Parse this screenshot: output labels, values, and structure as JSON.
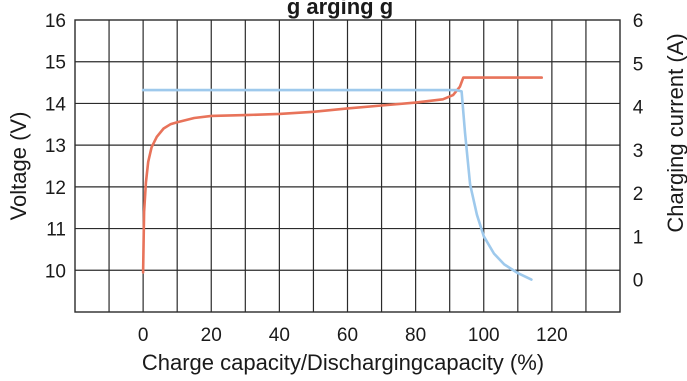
{
  "chart_data": {
    "type": "line",
    "title": "g    arging  g",
    "xlabel": "Charge capacity/Dischargingcapacity (%)",
    "ylabel": "Voltage (V)",
    "y2label": "Charging current (A)",
    "xlim": [
      -20,
      140
    ],
    "ylim": [
      9,
      16
    ],
    "y2lim": [
      -0.75,
      6
    ],
    "x_ticks": [
      0,
      20,
      40,
      60,
      80,
      100,
      120
    ],
    "y_ticks": [
      10,
      11,
      12,
      13,
      14,
      15,
      16
    ],
    "y2_ticks": [
      0,
      1,
      2,
      3,
      4,
      5,
      6
    ],
    "grid": true,
    "legend": "none",
    "colors": {
      "voltage": "#e8735a",
      "current": "#9ec9ec",
      "grid": "#2b2b2b"
    },
    "series": [
      {
        "axis": "left",
        "color": "#e8735a",
        "x": [
          0,
          0.3,
          0.8,
          1.5,
          2.5,
          4,
          6,
          8,
          10,
          15,
          20,
          30,
          40,
          50,
          60,
          70,
          80,
          88,
          91,
          93,
          94,
          100,
          110,
          117
        ],
        "y": [
          9.95,
          11.4,
          12.1,
          12.6,
          12.95,
          13.2,
          13.4,
          13.5,
          13.55,
          13.65,
          13.7,
          13.72,
          13.75,
          13.8,
          13.88,
          13.95,
          14.02,
          14.1,
          14.2,
          14.4,
          14.62,
          14.62,
          14.62,
          14.62
        ]
      },
      {
        "axis": "right",
        "color": "#9ec9ec",
        "x": [
          0,
          20,
          40,
          60,
          80,
          92,
          93.5,
          94.5,
          96,
          98,
          100,
          103,
          106,
          110,
          114
        ],
        "y": [
          4.38,
          4.38,
          4.38,
          4.38,
          4.38,
          4.38,
          4.35,
          3.4,
          2.2,
          1.5,
          1.0,
          0.6,
          0.35,
          0.15,
          0.0
        ]
      }
    ]
  }
}
